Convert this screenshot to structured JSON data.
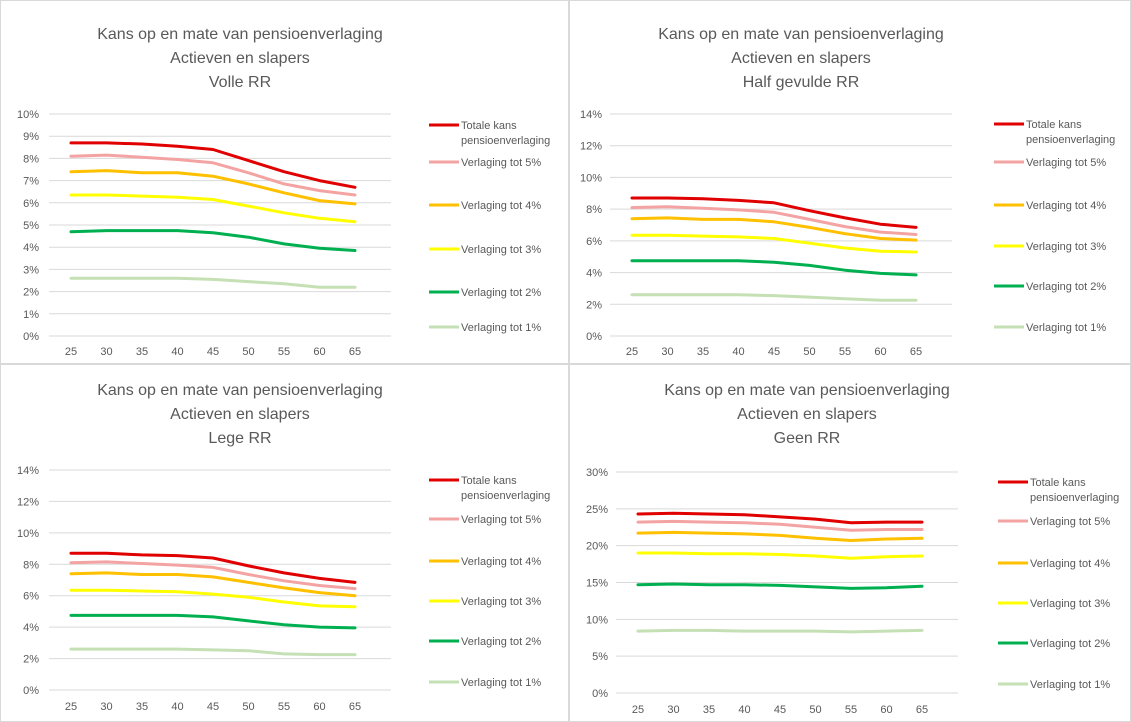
{
  "chart_data": [
    {
      "type": "line",
      "title": [
        "Kans op en mate van pensioenverlaging",
        "Actieven en slapers",
        "Volle RR"
      ],
      "x": [
        25,
        30,
        35,
        40,
        45,
        50,
        55,
        60,
        65
      ],
      "ylim": [
        0,
        10
      ],
      "yticks": [
        0,
        1,
        2,
        3,
        4,
        5,
        6,
        7,
        8,
        9,
        10
      ],
      "ytick_labels": [
        "0%",
        "1%",
        "2%",
        "3%",
        "4%",
        "5%",
        "6%",
        "7%",
        "8%",
        "9%",
        "10%"
      ],
      "grid": true,
      "legend": "right",
      "series": [
        {
          "name": "Totale kans pensioenverlaging",
          "color": "#e00000",
          "values": [
            8.7,
            8.7,
            8.65,
            8.55,
            8.4,
            7.9,
            7.4,
            7.0,
            6.7
          ]
        },
        {
          "name": "Verlaging tot 5%",
          "color": "#f4a3a3",
          "values": [
            8.1,
            8.15,
            8.05,
            7.95,
            7.8,
            7.35,
            6.85,
            6.55,
            6.35
          ]
        },
        {
          "name": "Verlaging tot 4%",
          "color": "#ffc000",
          "values": [
            7.4,
            7.45,
            7.35,
            7.35,
            7.2,
            6.85,
            6.45,
            6.1,
            5.95
          ]
        },
        {
          "name": "Verlaging tot 3%",
          "color": "#ffff00",
          "values": [
            6.35,
            6.35,
            6.3,
            6.25,
            6.15,
            5.85,
            5.55,
            5.3,
            5.15
          ]
        },
        {
          "name": "Verlaging tot 2%",
          "color": "#00b050",
          "values": [
            4.7,
            4.75,
            4.75,
            4.75,
            4.65,
            4.45,
            4.15,
            3.95,
            3.85
          ]
        },
        {
          "name": "Verlaging tot 1%",
          "color": "#c5e0b4",
          "values": [
            2.6,
            2.6,
            2.6,
            2.6,
            2.55,
            2.45,
            2.35,
            2.2,
            2.2
          ]
        }
      ]
    },
    {
      "type": "line",
      "title": [
        "Kans op en mate van pensioenverlaging",
        "Actieven en slapers",
        "Half gevulde RR"
      ],
      "x": [
        25,
        30,
        35,
        40,
        45,
        50,
        55,
        60,
        65
      ],
      "ylim": [
        0,
        14
      ],
      "yticks": [
        0,
        2,
        4,
        6,
        8,
        10,
        12,
        14
      ],
      "ytick_labels": [
        "0%",
        "2%",
        "4%",
        "6%",
        "8%",
        "10%",
        "12%",
        "14%"
      ],
      "grid": true,
      "legend": "right",
      "series": [
        {
          "name": "Totale kans pensioenverlaging",
          "color": "#e00000",
          "values": [
            8.7,
            8.7,
            8.65,
            8.55,
            8.4,
            7.9,
            7.45,
            7.05,
            6.85
          ]
        },
        {
          "name": "Verlaging tot 5%",
          "color": "#f4a3a3",
          "values": [
            8.1,
            8.15,
            8.05,
            7.95,
            7.8,
            7.35,
            6.9,
            6.55,
            6.4
          ]
        },
        {
          "name": "Verlaging tot 4%",
          "color": "#ffc000",
          "values": [
            7.4,
            7.45,
            7.35,
            7.35,
            7.2,
            6.85,
            6.45,
            6.15,
            6.05
          ]
        },
        {
          "name": "Verlaging tot 3%",
          "color": "#ffff00",
          "values": [
            6.35,
            6.35,
            6.3,
            6.25,
            6.15,
            5.85,
            5.55,
            5.35,
            5.3
          ]
        },
        {
          "name": "Verlaging tot 2%",
          "color": "#00b050",
          "values": [
            4.75,
            4.75,
            4.75,
            4.75,
            4.65,
            4.45,
            4.15,
            3.95,
            3.85
          ]
        },
        {
          "name": "Verlaging tot 1%",
          "color": "#c5e0b4",
          "values": [
            2.6,
            2.6,
            2.6,
            2.6,
            2.55,
            2.45,
            2.35,
            2.25,
            2.25
          ]
        }
      ]
    },
    {
      "type": "line",
      "title": [
        "Kans op en mate van pensioenverlaging",
        "Actieven en slapers",
        "Lege RR"
      ],
      "x": [
        25,
        30,
        35,
        40,
        45,
        50,
        55,
        60,
        65
      ],
      "ylim": [
        0,
        14
      ],
      "yticks": [
        0,
        2,
        4,
        6,
        8,
        10,
        12,
        14
      ],
      "ytick_labels": [
        "0%",
        "2%",
        "4%",
        "6%",
        "8%",
        "10%",
        "12%",
        "14%"
      ],
      "grid": true,
      "legend": "right",
      "series": [
        {
          "name": "Totale kans pensioenverlaging",
          "color": "#e00000",
          "values": [
            8.7,
            8.7,
            8.6,
            8.55,
            8.4,
            7.9,
            7.45,
            7.1,
            6.85
          ]
        },
        {
          "name": "Verlaging tot 5%",
          "color": "#f4a3a3",
          "values": [
            8.1,
            8.15,
            8.05,
            7.95,
            7.8,
            7.35,
            6.95,
            6.65,
            6.45
          ]
        },
        {
          "name": "Verlaging tot 4%",
          "color": "#ffc000",
          "values": [
            7.4,
            7.45,
            7.35,
            7.35,
            7.2,
            6.85,
            6.5,
            6.2,
            6.0
          ]
        },
        {
          "name": "Verlaging tot 3%",
          "color": "#ffff00",
          "values": [
            6.35,
            6.35,
            6.3,
            6.25,
            6.1,
            5.9,
            5.6,
            5.35,
            5.3
          ]
        },
        {
          "name": "Verlaging tot 2%",
          "color": "#00b050",
          "values": [
            4.75,
            4.75,
            4.75,
            4.75,
            4.65,
            4.4,
            4.15,
            4.0,
            3.95
          ]
        },
        {
          "name": "Verlaging tot 1%",
          "color": "#c5e0b4",
          "values": [
            2.6,
            2.6,
            2.6,
            2.6,
            2.55,
            2.5,
            2.3,
            2.25,
            2.25
          ]
        }
      ]
    },
    {
      "type": "line",
      "title": [
        "Kans op en mate van pensioenverlaging",
        "Actieven en slapers",
        "Geen RR"
      ],
      "x": [
        25,
        30,
        35,
        40,
        45,
        50,
        55,
        60,
        65
      ],
      "ylim": [
        0,
        30
      ],
      "yticks": [
        0,
        5,
        10,
        15,
        20,
        25,
        30
      ],
      "ytick_labels": [
        "0%",
        "5%",
        "10%",
        "15%",
        "20%",
        "25%",
        "30%"
      ],
      "grid": true,
      "legend": "right",
      "series": [
        {
          "name": "Totale kans pensioenverlaging",
          "color": "#e00000",
          "values": [
            24.3,
            24.4,
            24.3,
            24.2,
            23.9,
            23.6,
            23.1,
            23.2,
            23.2
          ]
        },
        {
          "name": "Verlaging tot 5%",
          "color": "#f4a3a3",
          "values": [
            23.2,
            23.3,
            23.2,
            23.1,
            22.9,
            22.5,
            22.1,
            22.2,
            22.2
          ]
        },
        {
          "name": "Verlaging tot 4%",
          "color": "#ffc000",
          "values": [
            21.7,
            21.8,
            21.7,
            21.6,
            21.4,
            21.0,
            20.7,
            20.9,
            21.0
          ]
        },
        {
          "name": "Verlaging tot 3%",
          "color": "#ffff00",
          "values": [
            19.0,
            19.0,
            18.9,
            18.9,
            18.8,
            18.6,
            18.3,
            18.5,
            18.6
          ]
        },
        {
          "name": "Verlaging tot 2%",
          "color": "#00b050",
          "values": [
            14.7,
            14.8,
            14.7,
            14.7,
            14.6,
            14.4,
            14.2,
            14.3,
            14.5
          ]
        },
        {
          "name": "Verlaging tot 1%",
          "color": "#c5e0b4",
          "values": [
            8.4,
            8.5,
            8.5,
            8.4,
            8.4,
            8.4,
            8.3,
            8.4,
            8.5
          ]
        }
      ]
    }
  ]
}
